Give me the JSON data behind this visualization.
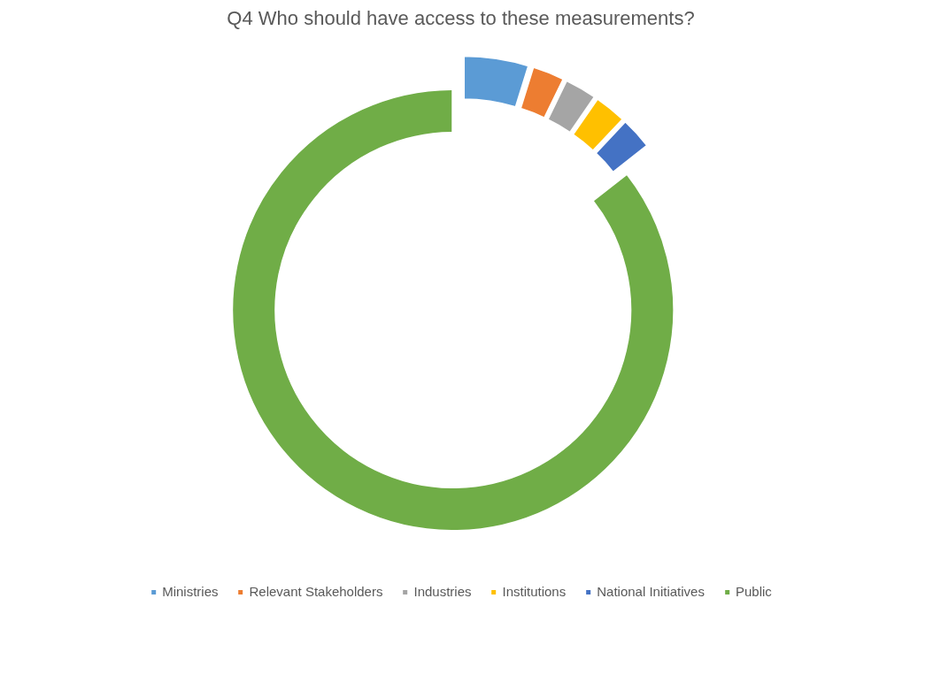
{
  "chart_data": {
    "type": "donut",
    "title": "Q4 Who should have access to these measurements?",
    "categories": [
      "Ministries",
      "Relevant Stakeholders",
      "Industries",
      "Institutions",
      "National Initiatives",
      "Public"
    ],
    "values": [
      4.8,
      2.4,
      2.4,
      2.4,
      2.4,
      85.6
    ],
    "colors": [
      "#5b9bd5",
      "#ed7d31",
      "#a5a5a5",
      "#ffc000",
      "#4472c4",
      "#70ad47"
    ],
    "legend": "bottom"
  }
}
